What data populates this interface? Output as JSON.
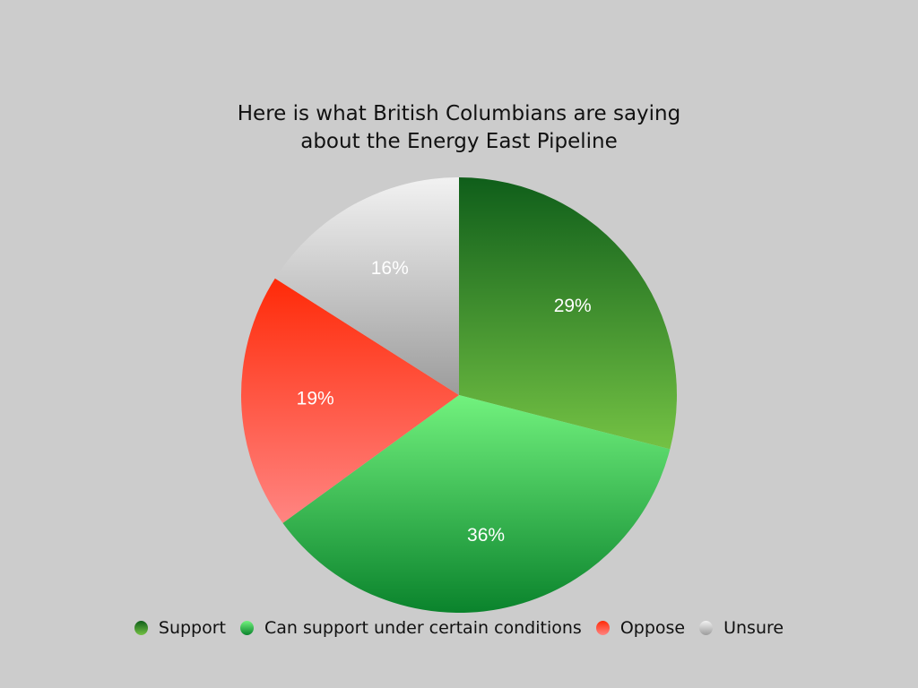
{
  "chart_data": {
    "type": "pie",
    "title": "Here is what British Columbians are saying about the Energy East Pipeline",
    "title_lines": [
      "Here is what British Columbians are saying",
      "about the Energy East Pipeline"
    ],
    "categories": [
      "Support",
      "Can support under certain conditions",
      "Oppose",
      "Unsure"
    ],
    "values": [
      29,
      36,
      19,
      16
    ],
    "labels": [
      "29%",
      "36%",
      "19%",
      "16%"
    ],
    "colors": [
      [
        "#0f5e1a",
        "#74c244"
      ],
      [
        "#72f27e",
        "#0a832c"
      ],
      [
        "#ff2a08",
        "#ff8582"
      ],
      [
        "#f2f2f2",
        "#9c9c9c"
      ]
    ],
    "legend_position": "bottom",
    "start": "top, clockwise"
  }
}
